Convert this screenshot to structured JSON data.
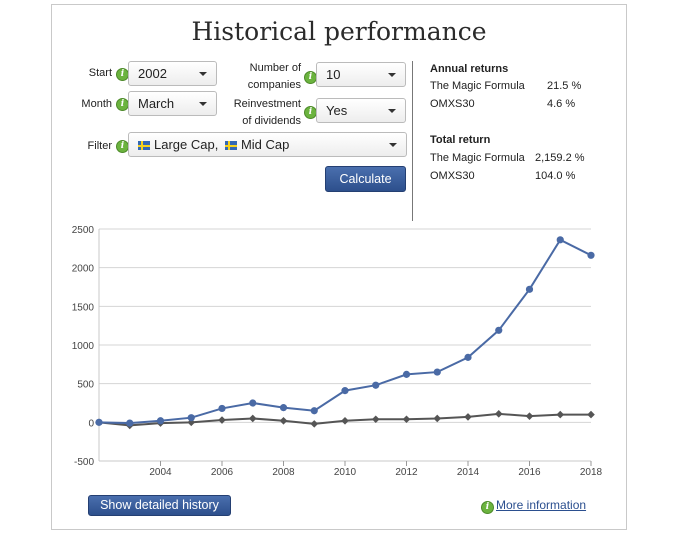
{
  "title": "Historical performance",
  "form": {
    "start_label": "Start",
    "start_value": "2002",
    "month_label": "Month",
    "month_value": "March",
    "companies_label_1": "Number of",
    "companies_label_2": "companies",
    "companies_value": "10",
    "reinvest_label_1": "Reinvestment",
    "reinvest_label_2": "of dividends",
    "reinvest_value": "Yes",
    "filter_label": "Filter",
    "filter_item_1": "Large Cap,",
    "filter_item_2": "Mid Cap",
    "calculate_label": "Calculate",
    "info_glyph": "i"
  },
  "results": {
    "annual_heading": "Annual returns",
    "annual": [
      {
        "name": "The Magic Formula",
        "value": "21.5 %"
      },
      {
        "name": "OMXS30",
        "value": "4.6 %"
      }
    ],
    "total_heading": "Total return",
    "total": [
      {
        "name": "The Magic Formula",
        "value": "2,159.2 %"
      },
      {
        "name": "OMXS30",
        "value": "104.0 %"
      }
    ]
  },
  "footer": {
    "history_button": "Show detailed history",
    "more_info": "More information"
  },
  "colors": {
    "magic_formula": "#4a6aa5",
    "omxs30": "#555555",
    "button": "#2d4f8c"
  },
  "chart_data": {
    "type": "line",
    "title": "",
    "xlabel": "",
    "ylabel": "",
    "ylim": [
      -500,
      2500
    ],
    "yticks": [
      -500,
      0,
      500,
      1000,
      1500,
      2000,
      2500
    ],
    "xlim": [
      2002,
      2018
    ],
    "xticks": [
      2004,
      2006,
      2008,
      2010,
      2012,
      2014,
      2016,
      2018
    ],
    "grid": true,
    "legend": "none",
    "series": [
      {
        "name": "",
        "marker": "circle",
        "x": [
          2002,
          2003,
          2004,
          2005,
          2006,
          2007,
          2008,
          2009,
          2010,
          2011,
          2012,
          2013,
          2014,
          2015,
          2016,
          2017,
          2018
        ],
        "values": [
          0,
          -10,
          20,
          60,
          180,
          250,
          190,
          150,
          410,
          480,
          620,
          650,
          840,
          1190,
          1720,
          2360,
          2160
        ]
      },
      {
        "name": "",
        "marker": "diamond",
        "x": [
          2002,
          2003,
          2004,
          2005,
          2006,
          2007,
          2008,
          2009,
          2010,
          2011,
          2012,
          2013,
          2014,
          2015,
          2016,
          2017,
          2018
        ],
        "values": [
          0,
          -40,
          -10,
          0,
          30,
          50,
          20,
          -20,
          20,
          40,
          40,
          50,
          70,
          110,
          80,
          100,
          100
        ]
      }
    ]
  }
}
